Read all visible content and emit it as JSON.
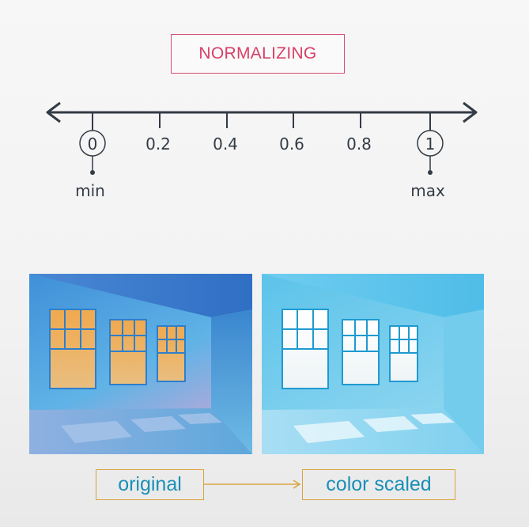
{
  "title": "NORMALIZING",
  "scale": {
    "ticks": [
      {
        "value": "0",
        "circled": true
      },
      {
        "value": "0.2",
        "circled": false
      },
      {
        "value": "0.4",
        "circled": false
      },
      {
        "value": "0.6",
        "circled": false
      },
      {
        "value": "0.8",
        "circled": false
      },
      {
        "value": "1",
        "circled": true
      }
    ],
    "min_label": "min",
    "max_label": "max"
  },
  "panels": {
    "original_caption": "original",
    "scaled_caption": "color scaled"
  },
  "colors": {
    "title": "#d93f68",
    "axis": "#333b45",
    "caption_border": "#d9a441",
    "caption_text": "#1a8fb8"
  }
}
